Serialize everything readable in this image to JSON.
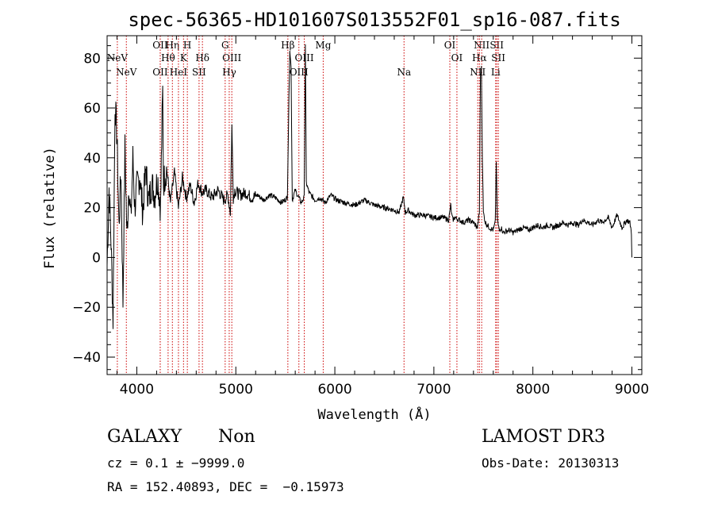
{
  "chart_data": {
    "type": "line",
    "title": "spec-56365-HD101607S013552F01_sp16-087.fits",
    "xlabel": "Wavelength (Å)",
    "ylabel": "Flux (relative)",
    "xlim": [
      3700,
      9100
    ],
    "ylim": [
      -47,
      89
    ],
    "xticks": [
      4000,
      5000,
      6000,
      7000,
      8000,
      9000
    ],
    "xtick_labels": [
      "4000",
      "5000",
      "6000",
      "7000",
      "8000",
      "9000"
    ],
    "yticks": [
      80,
      60,
      40,
      20,
      0,
      -20,
      -40
    ],
    "ytick_labels": [
      "80",
      "60",
      "40",
      "20",
      "0",
      "−20",
      "−40"
    ],
    "series": [
      {
        "name": "spectrum",
        "color": "#000000",
        "x": [
          3700,
          3720,
          3740,
          3760,
          3780,
          3800,
          3820,
          3840,
          3860,
          3880,
          3900,
          3920,
          3940,
          3960,
          3980,
          4000,
          4030,
          4060,
          4090,
          4120,
          4150,
          4180,
          4210,
          4240,
          4255,
          4262,
          4270,
          4300,
          4340,
          4380,
          4420,
          4460,
          4500,
          4540,
          4580,
          4620,
          4660,
          4700,
          4760,
          4820,
          4880,
          4920,
          4945,
          4960,
          4975,
          4990,
          5040,
          5100,
          5160,
          5220,
          5280,
          5340,
          5400,
          5460,
          5520,
          5545,
          5558,
          5570,
          5600,
          5660,
          5690,
          5702,
          5712,
          5740,
          5800,
          5850,
          5900,
          5960,
          6020,
          6100,
          6200,
          6300,
          6400,
          6500,
          6600,
          6650,
          6690,
          6700,
          6712,
          6740,
          6800,
          6900,
          7000,
          7100,
          7150,
          7170,
          7180,
          7192,
          7210,
          7260,
          7300,
          7350,
          7400,
          7440,
          7460,
          7470,
          7480,
          7490,
          7500,
          7520,
          7560,
          7600,
          7620,
          7630,
          7640,
          7650,
          7660,
          7680,
          7700,
          7760,
          7800,
          7850,
          7900,
          7960,
          8000,
          8050,
          8100,
          8150,
          8200,
          8260,
          8300,
          8360,
          8400,
          8460,
          8500,
          8560,
          8600,
          8660,
          8700,
          8760,
          8800,
          8850,
          8900,
          8950,
          8980,
          8995,
          9000
        ],
        "y": [
          -3,
          28,
          6,
          -25,
          62,
          48,
          12,
          35,
          -18,
          44,
          8,
          30,
          15,
          40,
          20,
          28,
          33,
          18,
          36,
          22,
          30,
          25,
          32,
          20,
          55,
          67,
          30,
          36,
          22,
          34,
          20,
          32,
          24,
          29,
          22,
          30,
          26,
          27,
          24,
          27,
          23,
          25,
          18,
          53,
          24,
          27,
          25,
          26,
          24,
          25,
          23,
          25,
          24,
          22,
          24,
          84,
          76,
          23,
          27,
          22,
          24,
          86,
          30,
          26,
          23,
          24,
          22,
          25,
          23,
          22,
          21,
          23,
          21,
          20,
          19,
          18,
          24,
          22,
          18,
          19,
          17,
          17,
          16,
          16,
          15,
          21,
          17,
          15,
          16,
          15,
          14,
          15,
          14,
          12,
          18,
          72,
          76,
          40,
          18,
          14,
          12,
          11,
          14,
          39,
          16,
          13,
          11,
          12,
          10,
          11,
          10,
          11,
          12,
          11,
          12,
          13,
          12,
          13,
          12,
          13,
          14,
          13,
          14,
          13,
          15,
          14,
          13,
          15,
          14,
          16,
          12,
          17,
          12,
          15,
          14,
          10,
          0
        ]
      }
    ],
    "line_markers": [
      {
        "label": "NeV",
        "wavelength": 3426,
        "row": 3
      },
      {
        "label": "NeV",
        "wavelength": 3346,
        "row": 2
      },
      {
        "label": "OII",
        "wavelength": 3727,
        "row": 3
      },
      {
        "label": "OII",
        "wavelength": 3727,
        "row": 1
      },
      {
        "label": "Hη",
        "wavelength": 3835,
        "row": 1
      },
      {
        "label": "H",
        "wavelength": 3968,
        "row": 1
      },
      {
        "label": "Hθ",
        "wavelength": 3797,
        "row": 2
      },
      {
        "label": "K",
        "wavelength": 3934,
        "row": 2
      },
      {
        "label": "HeI",
        "wavelength": 3889,
        "row": 3
      },
      {
        "label": "Hδ",
        "wavelength": 4102,
        "row": 2
      },
      {
        "label": "SII",
        "wavelength": 4072,
        "row": 3
      },
      {
        "label": "G",
        "wavelength": 4304,
        "row": 1
      },
      {
        "label": "OIII",
        "wavelength": 4363,
        "row": 2
      },
      {
        "label": "Hγ",
        "wavelength": 4340,
        "row": 3
      },
      {
        "label": "Hβ",
        "wavelength": 4861,
        "row": 1
      },
      {
        "label": "OIII",
        "wavelength": 5007,
        "row": 2
      },
      {
        "label": "OIII",
        "wavelength": 4959,
        "row": 3
      },
      {
        "label": "Mg",
        "wavelength": 5175,
        "row": 1
      },
      {
        "label": "Na",
        "wavelength": 5893,
        "row": 3
      },
      {
        "label": "OI",
        "wavelength": 6300,
        "row": 1
      },
      {
        "label": "OI",
        "wavelength": 6363,
        "row": 2
      },
      {
        "label": "NII",
        "wavelength": 6583,
        "row": 1
      },
      {
        "label": "SII",
        "wavelength": 6717,
        "row": 1
      },
      {
        "label": "Hα",
        "wavelength": 6563,
        "row": 2
      },
      {
        "label": "SII",
        "wavelength": 6731,
        "row": 2
      },
      {
        "label": "NII",
        "wavelength": 6548,
        "row": 3
      },
      {
        "label": "Li",
        "wavelength": 6707,
        "row": 3
      }
    ],
    "redshift_factor": 1.1367
  },
  "footer": {
    "object_class": "GALAXY",
    "subclass": "Non",
    "survey": "LAMOST DR3",
    "cz_text": "cz = 0.1 ± −9999.0",
    "obs_date_text": "Obs-Date: 20130313",
    "radec_text": "RA = 152.40893, DEC =  −0.15973"
  },
  "colors": {
    "line_marker": "#cc0000",
    "spectrum": "#000000"
  }
}
